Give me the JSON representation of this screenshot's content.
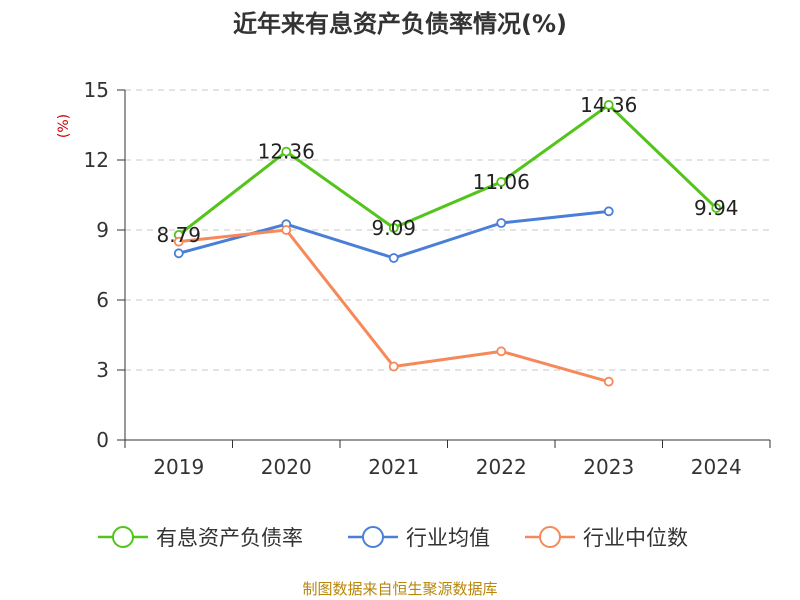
{
  "chart_data": {
    "type": "line",
    "title": "近年来有息资产负债率情况(%)",
    "unit_label": "(%)",
    "categories": [
      "2019",
      "2020",
      "2021",
      "2022",
      "2023",
      "2024"
    ],
    "ylim": [
      0,
      15
    ],
    "yticks": [
      "0",
      "3",
      "6",
      "9",
      "12",
      "15"
    ],
    "grid": true,
    "legend_position": "bottom",
    "series": [
      {
        "name": "有息资产负债率",
        "color": "#52c41a",
        "values": [
          8.79,
          12.36,
          9.09,
          11.06,
          14.36,
          9.94
        ],
        "labels": [
          "8.79",
          "12.36",
          "9.09",
          "11.06",
          "14.36",
          "9.94"
        ]
      },
      {
        "name": "行业均值",
        "color": "#4a7fd8",
        "values": [
          8.0,
          9.25,
          7.8,
          9.3,
          9.8,
          null
        ]
      },
      {
        "name": "行业中位数",
        "color": "#f5895a",
        "values": [
          8.5,
          9.0,
          3.15,
          3.8,
          2.5,
          null
        ]
      }
    ]
  },
  "source": "制图数据来自恒生聚源数据库"
}
